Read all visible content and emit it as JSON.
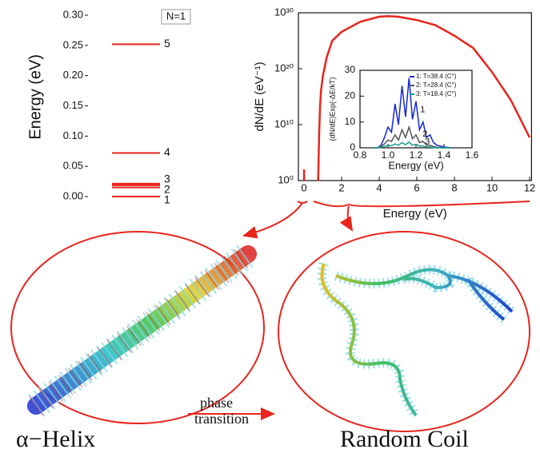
{
  "chart_data": [
    {
      "type": "levels",
      "ylabel": "Energy (eV)",
      "annotation": "N=1",
      "categories": [
        "1",
        "2",
        "3",
        "4",
        "5"
      ],
      "values": [
        0.0,
        0.015,
        0.02,
        0.072,
        0.252
      ],
      "color": "#e8241c",
      "ylim": [
        -0.01,
        0.3
      ],
      "yticks": [
        {
          "value": 0,
          "label": "0.00"
        },
        {
          "value": 0.05,
          "label": "0.05"
        },
        {
          "value": 0.1,
          "label": "0.10"
        },
        {
          "value": 0.15,
          "label": "0.15"
        },
        {
          "value": 0.2,
          "label": "0.20"
        },
        {
          "value": 0.25,
          "label": "0.25"
        },
        {
          "value": 0.3,
          "label": "0.30"
        }
      ]
    },
    {
      "type": "line",
      "xlabel": "Energy (eV)",
      "ylabel": "dN/dE (eV⁻¹)",
      "log_y": true,
      "xlim": [
        -0.3,
        12.1
      ],
      "xticks": [
        0,
        2,
        4,
        6,
        8,
        10,
        12
      ],
      "ylim": [
        1,
        1e+30
      ],
      "yticks": [
        {
          "value": 1,
          "label": "10⁰"
        },
        {
          "value": 10000000000.0,
          "label": "10¹⁰"
        },
        {
          "value": 1e+20,
          "label": "10²⁰"
        },
        {
          "value": 1e+30,
          "label": "10³⁰"
        }
      ],
      "series": [
        {
          "color": "#e8241c",
          "x": [
            0.75,
            0.8,
            0.85,
            0.9,
            1.0,
            1.2,
            1.5,
            2,
            3,
            4,
            4.5,
            5,
            6,
            7,
            8,
            9,
            10,
            11,
            12
          ],
          "values": [
            1,
            100000000.0,
            10000000000000.0,
            1e+16,
            5e+18,
            1e+22,
            1e+25,
            4e+26,
            2.5e+28,
            2e+29,
            2.5e+29,
            2e+29,
            5e+28,
            6e+27,
            8e+25,
            5e+23,
            2.5e+19,
            250000000000000.0,
            50000000.0
          ]
        },
        {
          "color": "#e8241c",
          "x": [
            0,
            0
          ],
          "values": [
            1,
            100
          ]
        }
      ]
    },
    {
      "type": "line",
      "xlabel": "Energy (eV)",
      "ylabel": "(dN/dE)Exp(-ΔE/kT)",
      "xlim": [
        0.8,
        1.6
      ],
      "xticks": [
        0.8,
        {
          "value": 1,
          "label": "1.0"
        },
        1.2,
        1.4,
        1.6
      ],
      "ylim": [
        0,
        30
      ],
      "yticks": [
        0,
        10,
        20,
        30
      ],
      "curve_labels": [
        "1",
        "2",
        "3"
      ],
      "x": [
        0.9,
        0.925,
        0.95,
        0.975,
        1.0,
        1.025,
        1.05,
        1.075,
        1.1,
        1.125,
        1.15,
        1.175,
        1.2,
        1.225,
        1.25,
        1.275,
        1.3,
        1.325,
        1.35,
        1.4,
        1.45
      ],
      "series": [
        {
          "name": "1: T=38.4 (C°)",
          "color": "#1428d8",
          "values": [
            0,
            0,
            1,
            4,
            8,
            6,
            17,
            9,
            24,
            12,
            27,
            11,
            18,
            7,
            10,
            4,
            5,
            2,
            1,
            0.3,
            0
          ]
        },
        {
          "name": "2: T=28.4 (C°)",
          "color": "#555555",
          "values": [
            0,
            0,
            0.5,
            1.5,
            3,
            2.5,
            5,
            3,
            7,
            4,
            8,
            3.5,
            5,
            2,
            2.5,
            1,
            1,
            0.5,
            0.2,
            0,
            0
          ]
        },
        {
          "name": "3: T=18.4 (C°)",
          "color": "#1a9a8a",
          "values": [
            0,
            0,
            0.2,
            0.5,
            1,
            0.8,
            1.5,
            1,
            2,
            1.2,
            2.2,
            1,
            1.4,
            0.6,
            0.7,
            0.3,
            0.3,
            0.1,
            0,
            0,
            0
          ]
        }
      ]
    }
  ],
  "labels": {
    "phase": "phase",
    "transition": "transition",
    "helix": "α−Helix",
    "coil": "Random Coil"
  }
}
